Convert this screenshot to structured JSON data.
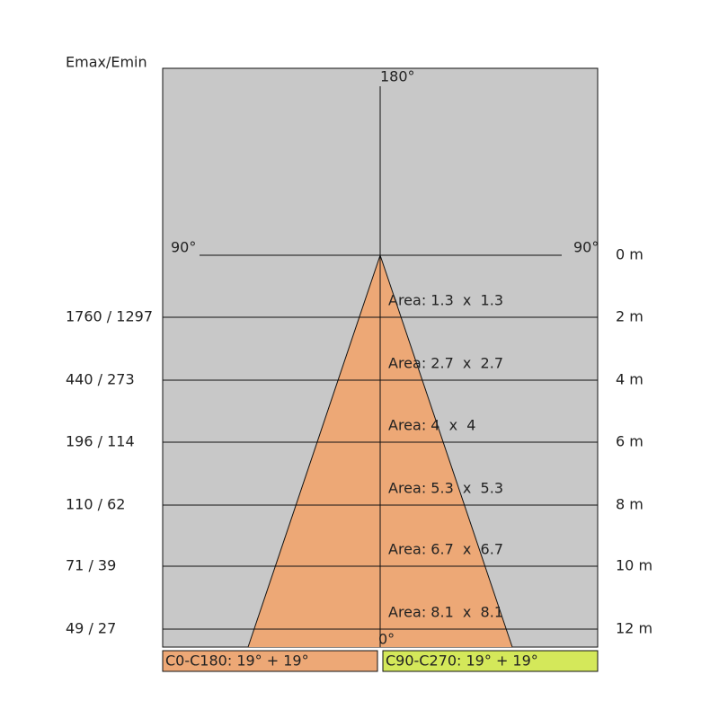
{
  "header": "Emax/Emin",
  "angles": {
    "top": "180°",
    "left": "90°",
    "right": "90°",
    "bottom": "0°"
  },
  "rows": [
    {
      "distance": "0 m"
    },
    {
      "emax_emin": "1760 / 1297",
      "distance": "2 m",
      "area": "Area: 1.3  x  1.3"
    },
    {
      "emax_emin": "440 / 273",
      "distance": "4 m",
      "area": "Area: 2.7  x  2.7"
    },
    {
      "emax_emin": "196 / 114",
      "distance": "6 m",
      "area": "Area: 4  x  4"
    },
    {
      "emax_emin": "110 / 62",
      "distance": "8 m",
      "area": "Area: 5.3  x  5.3"
    },
    {
      "emax_emin": "71 / 39",
      "distance": "10 m",
      "area": "Area: 6.7  x  6.7"
    },
    {
      "emax_emin": "49 / 27",
      "distance": "12 m",
      "area": "Area: 8.1  x  8.1"
    }
  ],
  "legend": [
    "C0-C180: 19° + 19°",
    "C90-C270: 19° + 19°"
  ]
}
